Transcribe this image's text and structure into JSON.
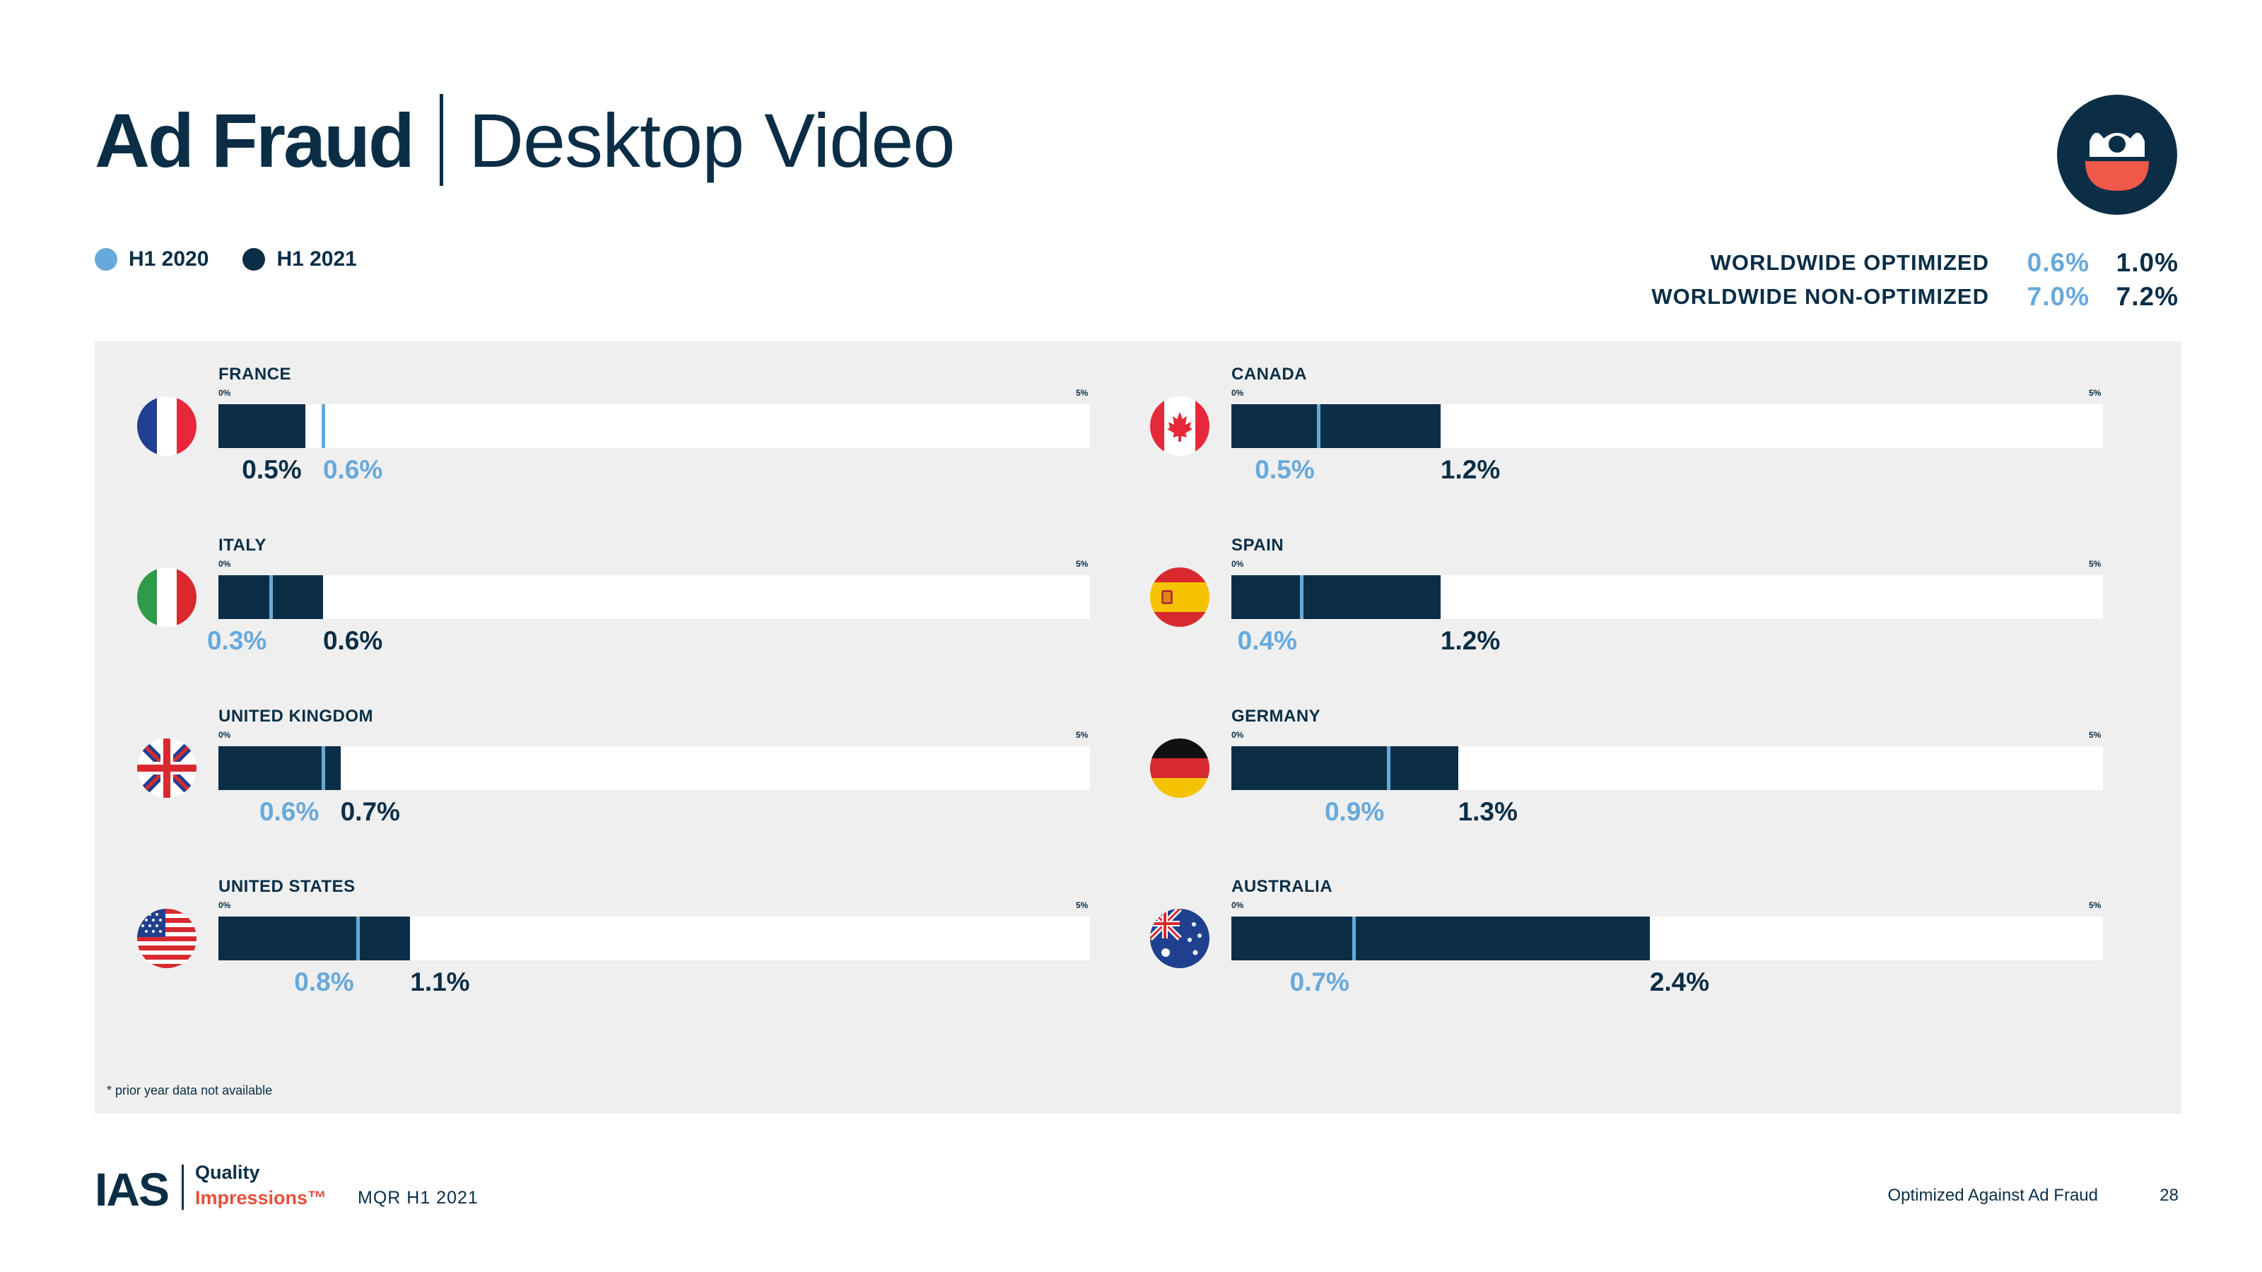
{
  "title": {
    "bold": "Ad Fraud",
    "light": "Desktop Video"
  },
  "legend": [
    {
      "label": "H1 2020",
      "color": "#67a9dc"
    },
    {
      "label": "H1 2021",
      "color": "#0b2e46"
    }
  ],
  "worldwide": [
    {
      "label": "WORLDWIDE OPTIMIZED",
      "h1_2020": "0.6%",
      "h1_2021": "1.0%"
    },
    {
      "label": "WORLDWIDE NON-OPTIMIZED",
      "h1_2020": "7.0%",
      "h1_2021": "7.2%"
    }
  ],
  "axis": {
    "min_label": "0%",
    "max_label": "5%"
  },
  "colors": {
    "h1_2020": "#67a9dc",
    "h1_2021": "#0b2e46",
    "panel": "#efefef",
    "accent": "#e8503a"
  },
  "chart_data": {
    "type": "bar",
    "xlim": [
      0,
      5
    ],
    "unit": "%",
    "series_names": [
      "H1 2020",
      "H1 2021"
    ],
    "countries": [
      {
        "name": "FRANCE",
        "flag": "france-flag",
        "h1_2020": 0.6,
        "h1_2021": 0.5,
        "label_2020": "0.6%",
        "label_2021": "0.5%"
      },
      {
        "name": "ITALY",
        "flag": "italy-flag",
        "h1_2020": 0.3,
        "h1_2021": 0.6,
        "label_2020": "0.3%",
        "label_2021": "0.6%"
      },
      {
        "name": "UNITED KINGDOM",
        "flag": "uk-flag",
        "h1_2020": 0.6,
        "h1_2021": 0.7,
        "label_2020": "0.6%",
        "label_2021": "0.7%"
      },
      {
        "name": "UNITED STATES",
        "flag": "us-flag",
        "h1_2020": 0.8,
        "h1_2021": 1.1,
        "label_2020": "0.8%",
        "label_2021": "1.1%"
      },
      {
        "name": "CANADA",
        "flag": "canada-flag",
        "h1_2020": 0.5,
        "h1_2021": 1.2,
        "label_2020": "0.5%",
        "label_2021": "1.2%"
      },
      {
        "name": "SPAIN",
        "flag": "spain-flag",
        "h1_2020": 0.4,
        "h1_2021": 1.2,
        "label_2020": "0.4%",
        "label_2021": "1.2%"
      },
      {
        "name": "GERMANY",
        "flag": "germany-flag",
        "h1_2020": 0.9,
        "h1_2021": 1.3,
        "label_2020": "0.9%",
        "label_2021": "1.3%"
      },
      {
        "name": "AUSTRALIA",
        "flag": "australia-flag",
        "h1_2020": 0.7,
        "h1_2021": 2.4,
        "label_2020": "0.7%",
        "label_2021": "2.4%"
      }
    ]
  },
  "footnote": "* prior year data not available",
  "footer": {
    "logo_text": "IAS",
    "brand_line1": "Quality",
    "brand_line2": "Impressions™",
    "report": "MQR H1 2021",
    "section": "Optimized Against Ad Fraud",
    "page": "28"
  }
}
